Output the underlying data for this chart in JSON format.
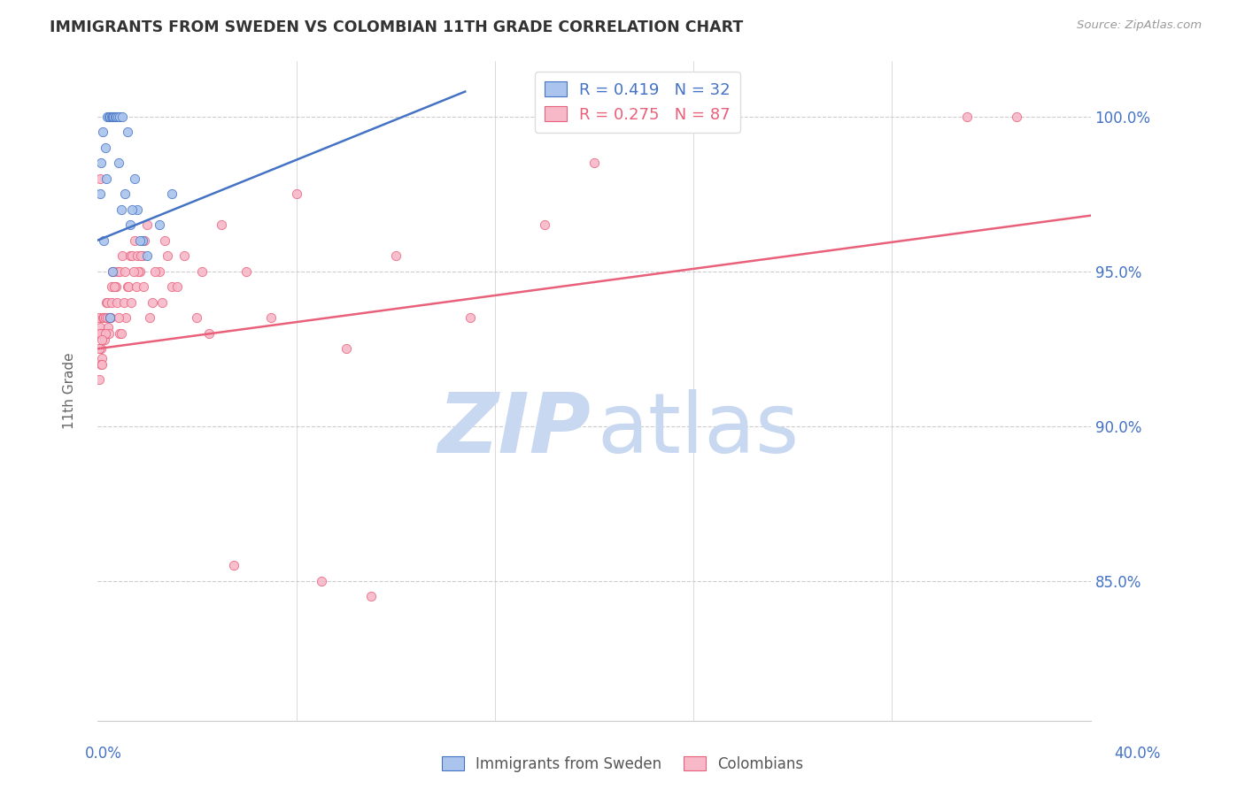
{
  "title": "IMMIGRANTS FROM SWEDEN VS COLOMBIAN 11TH GRADE CORRELATION CHART",
  "source": "Source: ZipAtlas.com",
  "ylabel": "11th Grade",
  "right_yticks": [
    100.0,
    95.0,
    90.0,
    85.0
  ],
  "xmin": 0.0,
  "xmax": 40.0,
  "ymin": 80.5,
  "ymax": 101.8,
  "blue_R": 0.419,
  "blue_N": 32,
  "pink_R": 0.275,
  "pink_N": 87,
  "blue_color": "#aac4ed",
  "pink_color": "#f7b8c8",
  "blue_line_color": "#4472c4",
  "pink_line_color": "#e8607a",
  "legend_label_blue": "Immigrants from Sweden",
  "legend_label_pink": "Colombians",
  "blue_x": [
    0.1,
    0.15,
    0.2,
    0.25,
    0.3,
    0.35,
    0.4,
    0.45,
    0.5,
    0.55,
    0.6,
    0.65,
    0.7,
    0.75,
    0.8,
    0.85,
    0.9,
    0.95,
    1.0,
    1.1,
    1.2,
    1.3,
    1.5,
    1.6,
    1.8,
    2.0,
    2.5,
    3.0,
    1.4,
    1.7,
    0.5,
    0.6
  ],
  "blue_y": [
    97.5,
    98.5,
    99.5,
    96.0,
    99.0,
    98.0,
    100.0,
    100.0,
    100.0,
    100.0,
    100.0,
    100.0,
    100.0,
    100.0,
    100.0,
    98.5,
    100.0,
    97.0,
    100.0,
    97.5,
    99.5,
    96.5,
    98.0,
    97.0,
    96.0,
    95.5,
    96.5,
    97.5,
    97.0,
    96.0,
    93.5,
    95.0
  ],
  "pink_x": [
    0.05,
    0.08,
    0.1,
    0.12,
    0.15,
    0.18,
    0.2,
    0.22,
    0.25,
    0.28,
    0.3,
    0.35,
    0.38,
    0.4,
    0.42,
    0.45,
    0.48,
    0.5,
    0.55,
    0.6,
    0.65,
    0.7,
    0.75,
    0.8,
    0.9,
    1.0,
    1.1,
    1.2,
    1.3,
    1.4,
    1.5,
    1.6,
    1.7,
    1.8,
    1.9,
    2.0,
    2.2,
    2.5,
    2.8,
    3.0,
    3.5,
    4.0,
    4.5,
    5.0,
    6.0,
    7.0,
    8.0,
    10.0,
    12.0,
    15.0,
    18.0,
    20.0,
    0.06,
    0.09,
    0.11,
    0.14,
    0.17,
    0.32,
    0.52,
    0.58,
    0.68,
    0.78,
    0.88,
    1.05,
    1.15,
    1.25,
    1.35,
    1.55,
    1.65,
    1.75,
    2.1,
    2.3,
    2.6,
    3.2,
    4.2,
    5.5,
    9.0,
    11.0,
    0.95,
    0.85,
    1.45,
    1.85,
    2.7,
    35.0,
    37.0,
    0.07,
    0.16
  ],
  "pink_y": [
    93.0,
    93.5,
    93.2,
    92.5,
    93.0,
    92.2,
    93.5,
    93.0,
    93.5,
    92.8,
    93.5,
    94.0,
    93.5,
    94.0,
    93.2,
    93.0,
    93.5,
    93.5,
    94.5,
    95.0,
    95.0,
    94.5,
    94.5,
    95.0,
    95.0,
    95.5,
    95.0,
    94.5,
    95.5,
    95.5,
    96.0,
    95.5,
    95.0,
    95.5,
    96.0,
    96.5,
    94.0,
    95.0,
    95.5,
    94.5,
    95.5,
    93.5,
    93.0,
    96.5,
    95.0,
    93.5,
    97.5,
    92.5,
    95.5,
    93.5,
    96.5,
    98.5,
    92.5,
    98.0,
    93.0,
    92.0,
    92.0,
    93.0,
    93.5,
    94.0,
    94.5,
    94.0,
    93.0,
    94.0,
    93.5,
    94.5,
    94.0,
    94.5,
    95.0,
    95.5,
    93.5,
    95.0,
    94.0,
    94.5,
    95.0,
    85.5,
    85.0,
    84.5,
    93.0,
    93.5,
    95.0,
    94.5,
    96.0,
    100.0,
    100.0,
    91.5,
    92.8
  ],
  "blue_trendline_x": [
    0.0,
    14.8
  ],
  "blue_trendline_y": [
    96.0,
    100.8
  ],
  "pink_trendline_x": [
    0.0,
    40.0
  ],
  "pink_trendline_y": [
    92.5,
    96.8
  ]
}
